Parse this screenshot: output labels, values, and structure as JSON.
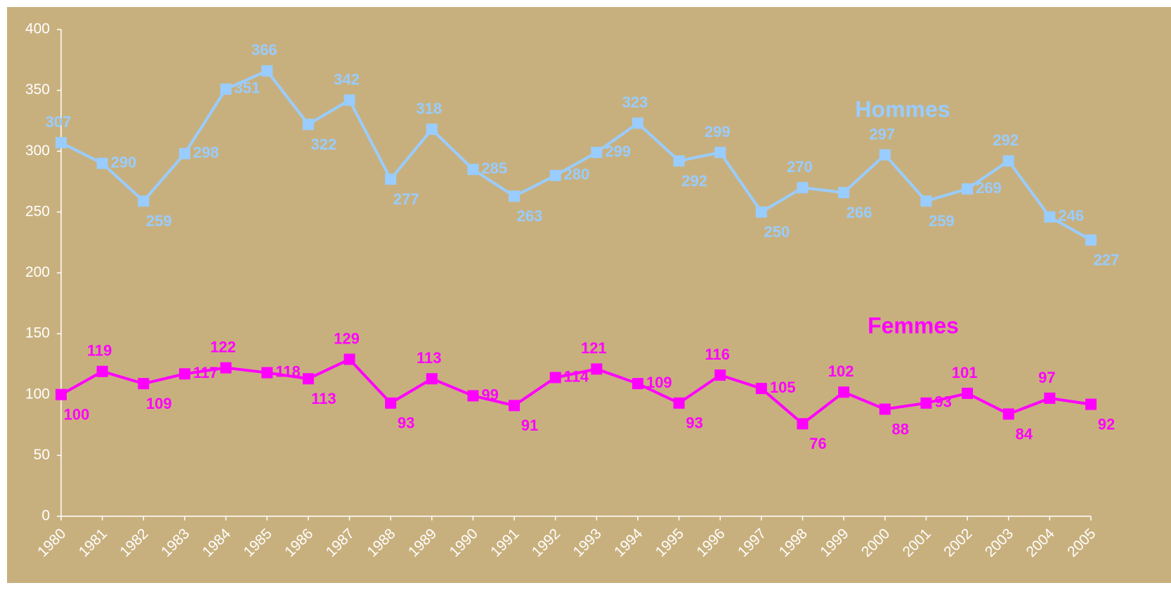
{
  "chart_data": {
    "type": "line",
    "x": [
      "1980",
      "1981",
      "1982",
      "1983",
      "1984",
      "1985",
      "1986",
      "1987",
      "1988",
      "1989",
      "1990",
      "1991",
      "1992",
      "1993",
      "1994",
      "1995",
      "1996",
      "1997",
      "1998",
      "1999",
      "2000",
      "2001",
      "2002",
      "2003",
      "2004",
      "2005"
    ],
    "series": [
      {
        "name": "Hommes",
        "color": "#99ccff",
        "values": [
          307,
          290,
          259,
          298,
          351,
          366,
          322,
          342,
          277,
          318,
          285,
          263,
          280,
          299,
          323,
          292,
          299,
          250,
          270,
          266,
          297,
          259,
          269,
          292,
          246,
          227
        ]
      },
      {
        "name": "Femmes",
        "color": "#ff00ff",
        "values": [
          100,
          119,
          109,
          117,
          122,
          118,
          113,
          129,
          93,
          113,
          99,
          91,
          114,
          121,
          109,
          93,
          116,
          105,
          76,
          102,
          88,
          93,
          101,
          84,
          97,
          92
        ]
      }
    ],
    "ylim": [
      0,
      400
    ],
    "yticks": [
      0,
      50,
      100,
      150,
      200,
      250,
      300,
      350,
      400
    ],
    "grid": false
  }
}
